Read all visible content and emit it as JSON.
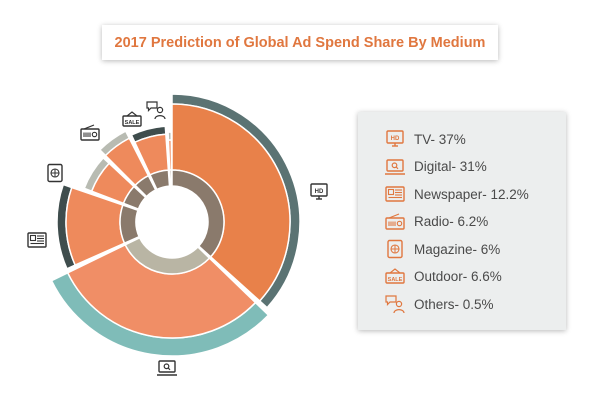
{
  "chart_data": {
    "type": "pie",
    "title": "2017 Prediction of Global Ad Spend Share By Medium",
    "series": [
      {
        "name": "TV",
        "label": "TV- 37%",
        "value": 37,
        "icon": "tv-icon"
      },
      {
        "name": "Digital",
        "label": "Digital- 31%",
        "value": 31,
        "icon": "digital-screen-icon"
      },
      {
        "name": "Newspaper",
        "label": "Newspaper- 12.2%",
        "value": 12.2,
        "icon": "newspaper-icon"
      },
      {
        "name": "Radio",
        "label": "Radio- 6.2%",
        "value": 6.2,
        "icon": "radio-icon"
      },
      {
        "name": "Magazine",
        "label": "Magazine- 6%",
        "value": 6,
        "icon": "magazine-icon"
      },
      {
        "name": "Outdoor",
        "label": "Outdoor- 6.6%",
        "value": 6.6,
        "icon": "outdoor-sale-icon"
      },
      {
        "name": "Others",
        "label": "Others- 0.5%",
        "value": 0.5,
        "icon": "others-people-icon"
      }
    ],
    "legend_position": "right"
  },
  "colors": {
    "title_text": "#e0773f",
    "tv_main": "#e8814a",
    "tv_outer": "#5b7373",
    "digital_main": "#f08e66",
    "digital_outer": "#7fbcb8",
    "small_main": "#ee8a5c",
    "small_outer_dark": "#3f4d4d",
    "small_outer_light": "#b8bbb2",
    "inner_ring": "#8a7a6c",
    "icon_outline": "#e0773f",
    "legend_bg": "#eceeee"
  }
}
